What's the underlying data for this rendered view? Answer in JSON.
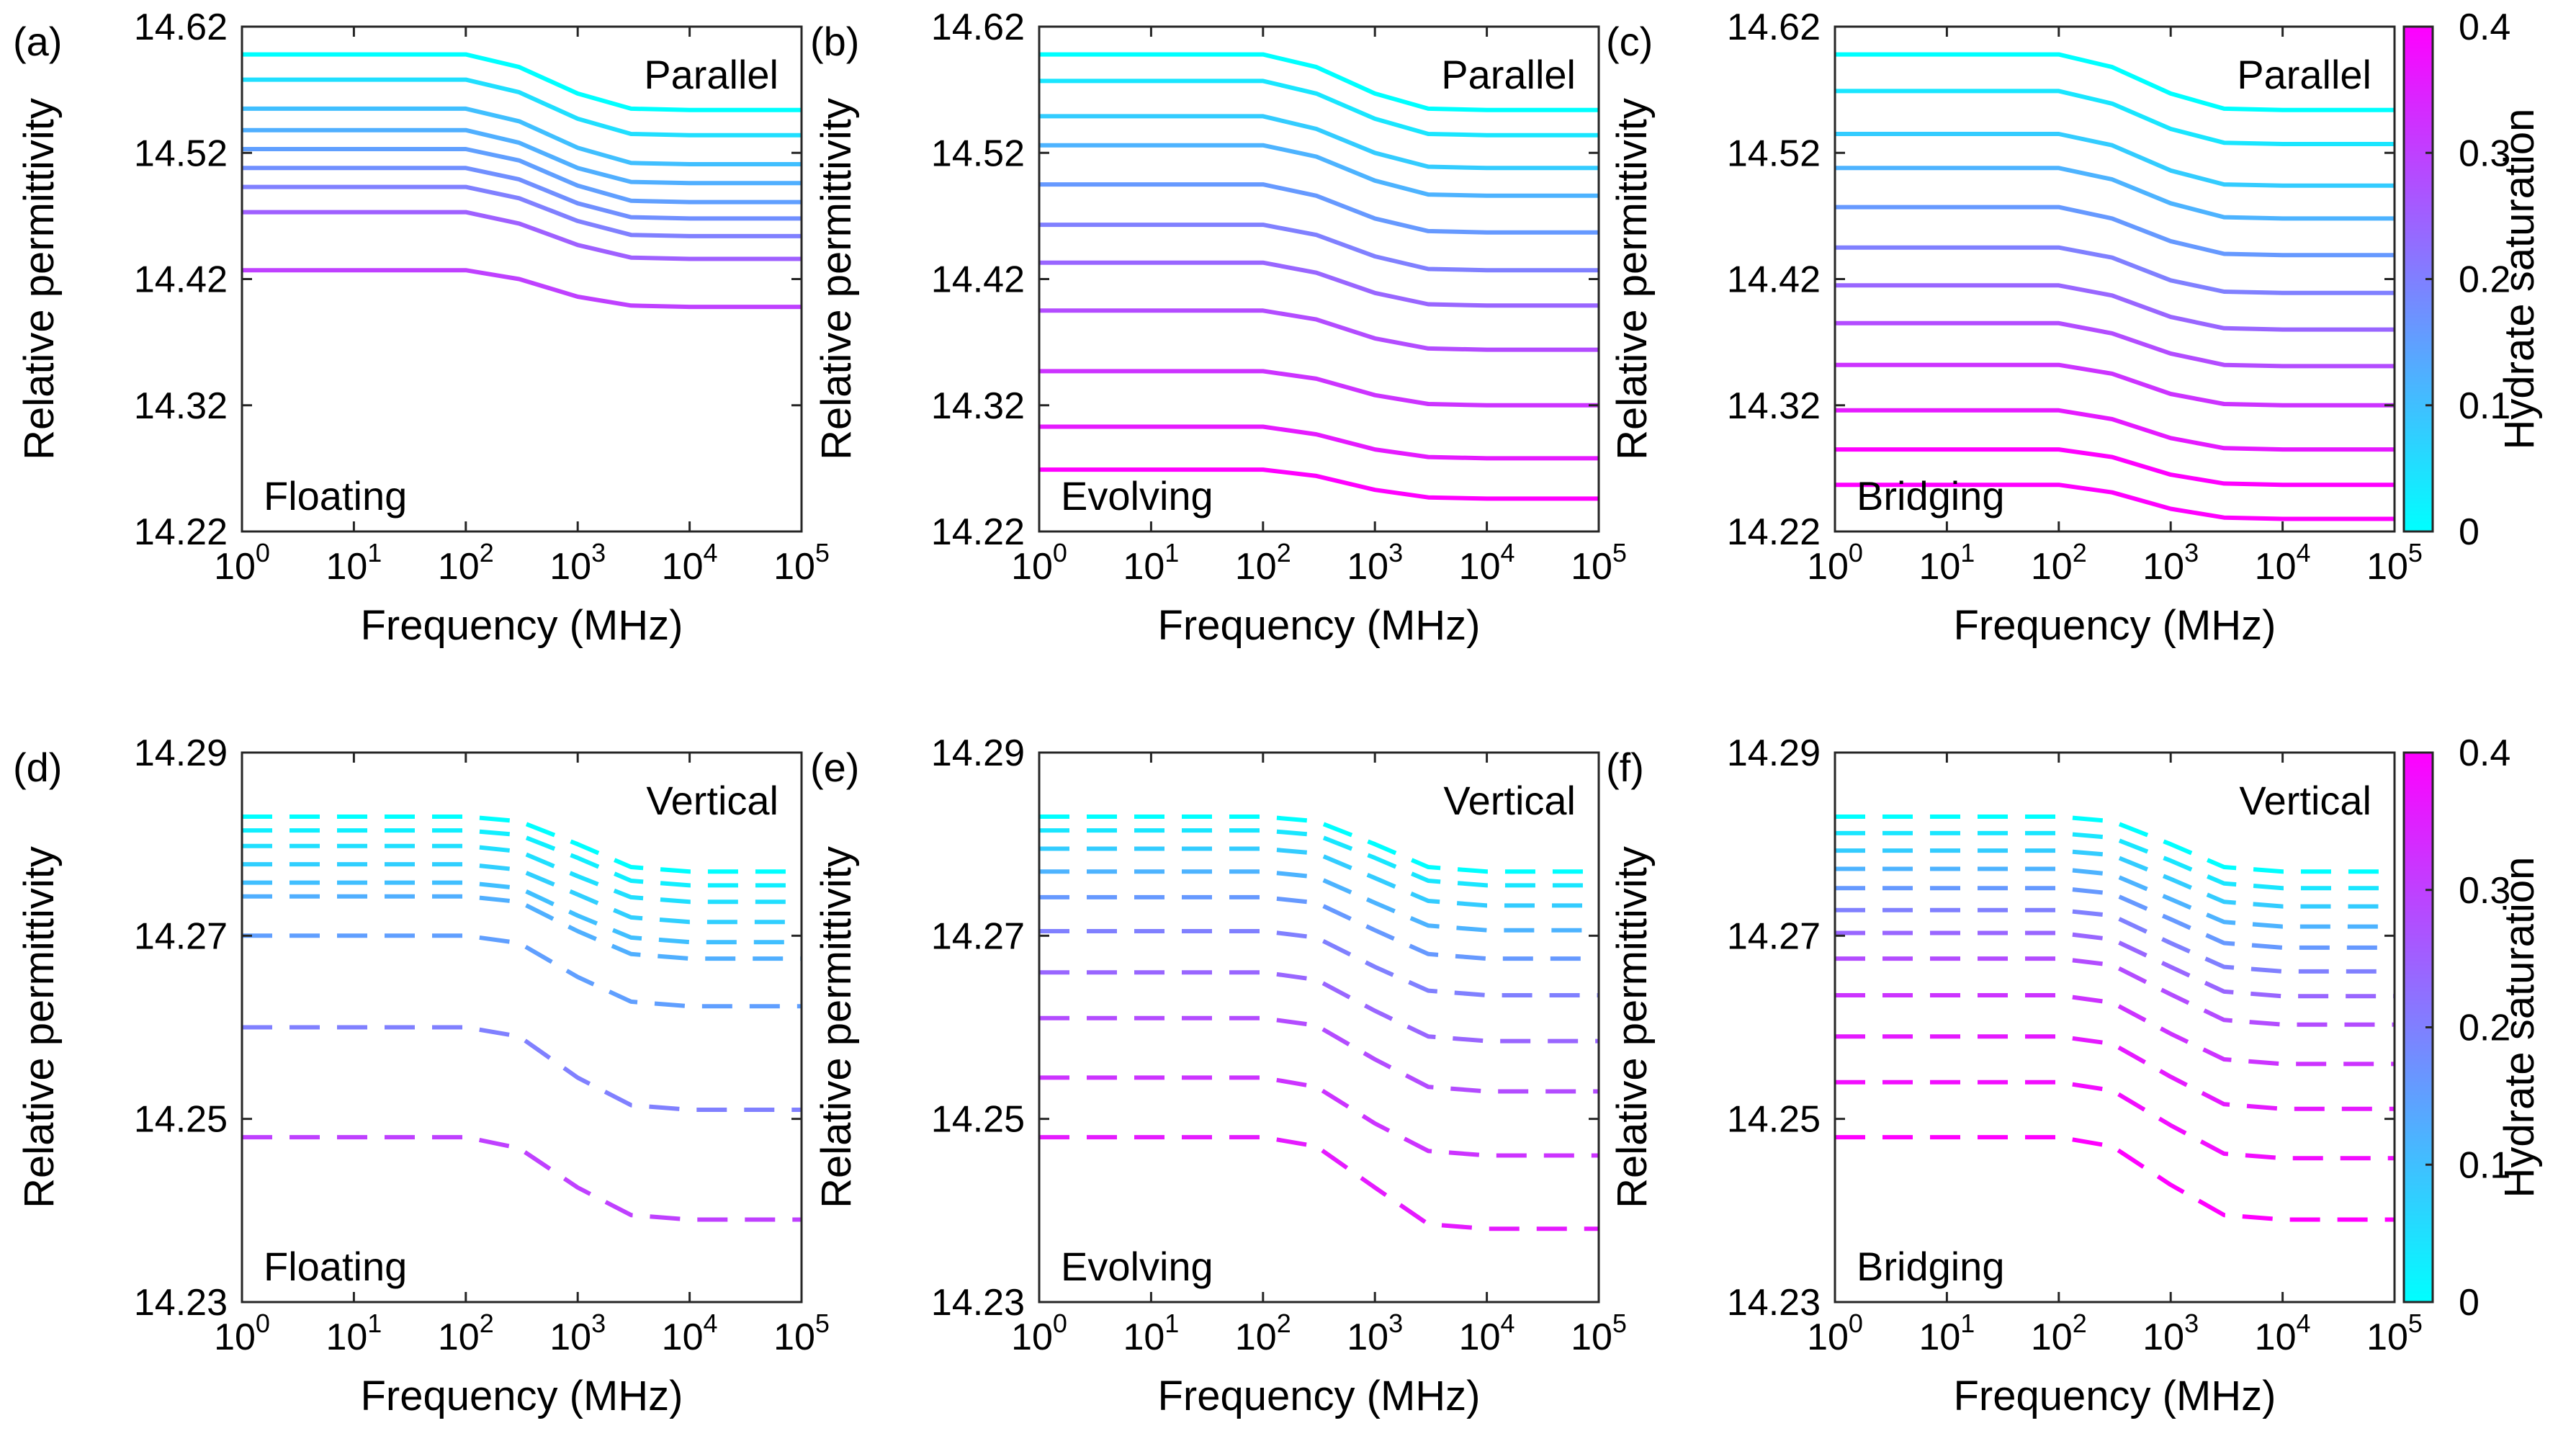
{
  "figure": {
    "colorbar_label": "Hydrate saturation",
    "colorbar_ticks": [
      "0",
      "0.1",
      "0.2",
      "0.3",
      "0.4"
    ],
    "colorbar_colors": [
      "#00ffff",
      "#ff00ff"
    ]
  },
  "chart_data": [
    {
      "type": "line",
      "panel_label": "(a)",
      "orientation": "Parallel",
      "model": "Floating",
      "xlabel": "Frequency (MHz)",
      "ylabel": "Relative permittivity",
      "x_scale": "log",
      "xlim": [
        1,
        100000
      ],
      "ylim": [
        14.22,
        14.62
      ],
      "ytick_labels": [
        "14.22",
        "14.32",
        "14.42",
        "14.52",
        "14.62"
      ],
      "xtick_base": "10",
      "xtick_exponents": [
        "0",
        "1",
        "2",
        "3",
        "4",
        "5"
      ],
      "line_style": "solid",
      "x": [
        1,
        100,
        300,
        1000,
        3000,
        10000,
        100000
      ],
      "series": [
        {
          "saturation": 0.0,
          "values": [
            14.598,
            14.598,
            14.588,
            14.567,
            14.555,
            14.554,
            14.554
          ]
        },
        {
          "saturation": 0.05,
          "values": [
            14.578,
            14.578,
            14.568,
            14.547,
            14.535,
            14.534,
            14.534
          ]
        },
        {
          "saturation": 0.1,
          "values": [
            14.555,
            14.555,
            14.545,
            14.524,
            14.512,
            14.511,
            14.511
          ]
        },
        {
          "saturation": 0.125,
          "values": [
            14.538,
            14.538,
            14.528,
            14.508,
            14.497,
            14.496,
            14.496
          ]
        },
        {
          "saturation": 0.15,
          "values": [
            14.523,
            14.523,
            14.514,
            14.494,
            14.482,
            14.481,
            14.481
          ]
        },
        {
          "saturation": 0.175,
          "values": [
            14.508,
            14.508,
            14.499,
            14.48,
            14.469,
            14.468,
            14.468
          ]
        },
        {
          "saturation": 0.2,
          "values": [
            14.493,
            14.493,
            14.484,
            14.466,
            14.455,
            14.454,
            14.454
          ]
        },
        {
          "saturation": 0.25,
          "values": [
            14.473,
            14.473,
            14.464,
            14.447,
            14.437,
            14.436,
            14.436
          ]
        },
        {
          "saturation": 0.3,
          "values": [
            14.427,
            14.427,
            14.42,
            14.406,
            14.399,
            14.398,
            14.398
          ]
        }
      ]
    },
    {
      "type": "line",
      "panel_label": "(b)",
      "orientation": "Parallel",
      "model": "Evolving",
      "xlabel": "Frequency (MHz)",
      "ylabel": "Relative permittivity",
      "x_scale": "log",
      "xlim": [
        1,
        100000
      ],
      "ylim": [
        14.22,
        14.62
      ],
      "ytick_labels": [
        "14.22",
        "14.32",
        "14.42",
        "14.52",
        "14.62"
      ],
      "xtick_base": "10",
      "xtick_exponents": [
        "0",
        "1",
        "2",
        "3",
        "4",
        "5"
      ],
      "line_style": "solid",
      "x": [
        1,
        100,
        300,
        1000,
        3000,
        10000,
        100000
      ],
      "series": [
        {
          "saturation": 0.0,
          "values": [
            14.598,
            14.598,
            14.588,
            14.567,
            14.555,
            14.554,
            14.554
          ]
        },
        {
          "saturation": 0.04,
          "values": [
            14.577,
            14.577,
            14.567,
            14.547,
            14.535,
            14.534,
            14.534
          ]
        },
        {
          "saturation": 0.08,
          "values": [
            14.549,
            14.549,
            14.539,
            14.52,
            14.509,
            14.508,
            14.508
          ]
        },
        {
          "saturation": 0.12,
          "values": [
            14.526,
            14.526,
            14.517,
            14.498,
            14.487,
            14.486,
            14.486
          ]
        },
        {
          "saturation": 0.16,
          "values": [
            14.495,
            14.495,
            14.486,
            14.468,
            14.458,
            14.457,
            14.457
          ]
        },
        {
          "saturation": 0.2,
          "values": [
            14.463,
            14.463,
            14.455,
            14.438,
            14.428,
            14.427,
            14.427
          ]
        },
        {
          "saturation": 0.24,
          "values": [
            14.433,
            14.433,
            14.425,
            14.409,
            14.4,
            14.399,
            14.399
          ]
        },
        {
          "saturation": 0.28,
          "values": [
            14.395,
            14.395,
            14.388,
            14.373,
            14.365,
            14.364,
            14.364
          ]
        },
        {
          "saturation": 0.32,
          "values": [
            14.347,
            14.347,
            14.341,
            14.328,
            14.321,
            14.32,
            14.32
          ]
        },
        {
          "saturation": 0.36,
          "values": [
            14.303,
            14.303,
            14.297,
            14.285,
            14.279,
            14.278,
            14.278
          ]
        },
        {
          "saturation": 0.4,
          "values": [
            14.269,
            14.269,
            14.264,
            14.253,
            14.247,
            14.246,
            14.246
          ]
        }
      ]
    },
    {
      "type": "line",
      "panel_label": "(c)",
      "orientation": "Parallel",
      "model": "Bridging",
      "xlabel": "Frequency (MHz)",
      "ylabel": "Relative permittivity",
      "x_scale": "log",
      "xlim": [
        1,
        100000
      ],
      "ylim": [
        14.22,
        14.62
      ],
      "ytick_labels": [
        "14.22",
        "14.32",
        "14.42",
        "14.52",
        "14.62"
      ],
      "xtick_base": "10",
      "xtick_exponents": [
        "0",
        "1",
        "2",
        "3",
        "4",
        "5"
      ],
      "line_style": "solid",
      "x": [
        1,
        100,
        300,
        1000,
        3000,
        10000,
        100000
      ],
      "series": [
        {
          "saturation": 0.0,
          "values": [
            14.598,
            14.598,
            14.588,
            14.567,
            14.555,
            14.554,
            14.554
          ]
        },
        {
          "saturation": 0.04,
          "values": [
            14.569,
            14.569,
            14.559,
            14.539,
            14.528,
            14.527,
            14.527
          ]
        },
        {
          "saturation": 0.08,
          "values": [
            14.535,
            14.535,
            14.526,
            14.506,
            14.495,
            14.494,
            14.494
          ]
        },
        {
          "saturation": 0.12,
          "values": [
            14.508,
            14.508,
            14.499,
            14.48,
            14.469,
            14.468,
            14.468
          ]
        },
        {
          "saturation": 0.16,
          "values": [
            14.477,
            14.477,
            14.468,
            14.45,
            14.44,
            14.439,
            14.439
          ]
        },
        {
          "saturation": 0.2,
          "values": [
            14.445,
            14.445,
            14.437,
            14.419,
            14.41,
            14.409,
            14.409
          ]
        },
        {
          "saturation": 0.24,
          "values": [
            14.415,
            14.415,
            14.407,
            14.39,
            14.381,
            14.38,
            14.38
          ]
        },
        {
          "saturation": 0.28,
          "values": [
            14.385,
            14.385,
            14.377,
            14.361,
            14.352,
            14.351,
            14.351
          ]
        },
        {
          "saturation": 0.32,
          "values": [
            14.352,
            14.352,
            14.345,
            14.329,
            14.321,
            14.32,
            14.32
          ]
        },
        {
          "saturation": 0.36,
          "values": [
            14.316,
            14.316,
            14.309,
            14.294,
            14.286,
            14.285,
            14.285
          ]
        },
        {
          "saturation": 0.4,
          "values": [
            14.285,
            14.285,
            14.279,
            14.265,
            14.258,
            14.257,
            14.257
          ]
        },
        {
          "saturation": 0.42,
          "values": [
            14.257,
            14.257,
            14.251,
            14.238,
            14.231,
            14.23,
            14.23
          ]
        }
      ]
    },
    {
      "type": "line",
      "panel_label": "(d)",
      "orientation": "Vertical",
      "model": "Floating",
      "xlabel": "Frequency (MHz)",
      "ylabel": "Relative permittivity",
      "x_scale": "log",
      "xlim": [
        1,
        100000
      ],
      "ylim": [
        14.23,
        14.29
      ],
      "ytick_labels": [
        "14.23",
        "14.25",
        "14.27",
        "14.29"
      ],
      "xtick_base": "10",
      "xtick_exponents": [
        "0",
        "1",
        "2",
        "3",
        "4",
        "5"
      ],
      "line_style": "dashed",
      "x": [
        1,
        100,
        300,
        1000,
        3000,
        10000,
        100000
      ],
      "series": [
        {
          "saturation": 0.0,
          "values": [
            14.283,
            14.283,
            14.2825,
            14.28,
            14.2775,
            14.277,
            14.277
          ]
        },
        {
          "saturation": 0.025,
          "values": [
            14.2815,
            14.2815,
            14.281,
            14.2785,
            14.276,
            14.2755,
            14.2755
          ]
        },
        {
          "saturation": 0.05,
          "values": [
            14.2798,
            14.2798,
            14.2792,
            14.2765,
            14.2742,
            14.2737,
            14.2737
          ]
        },
        {
          "saturation": 0.075,
          "values": [
            14.2778,
            14.2778,
            14.2772,
            14.2745,
            14.272,
            14.2715,
            14.2715
          ]
        },
        {
          "saturation": 0.1,
          "values": [
            14.2758,
            14.2758,
            14.2752,
            14.2722,
            14.2698,
            14.2693,
            14.2693
          ]
        },
        {
          "saturation": 0.125,
          "values": [
            14.2743,
            14.2743,
            14.2737,
            14.2705,
            14.268,
            14.2675,
            14.2675
          ]
        },
        {
          "saturation": 0.15,
          "values": [
            14.27,
            14.27,
            14.2692,
            14.2655,
            14.2628,
            14.2623,
            14.2623
          ]
        },
        {
          "saturation": 0.2,
          "values": [
            14.26,
            14.26,
            14.259,
            14.2545,
            14.2515,
            14.251,
            14.251
          ]
        },
        {
          "saturation": 0.3,
          "values": [
            14.248,
            14.248,
            14.2468,
            14.2425,
            14.2395,
            14.239,
            14.239
          ]
        }
      ]
    },
    {
      "type": "line",
      "panel_label": "(e)",
      "orientation": "Vertical",
      "model": "Evolving",
      "xlabel": "Frequency (MHz)",
      "ylabel": "Relative permittivity",
      "x_scale": "log",
      "xlim": [
        1,
        100000
      ],
      "ylim": [
        14.23,
        14.29
      ],
      "ytick_labels": [
        "14.23",
        "14.25",
        "14.27",
        "14.29"
      ],
      "xtick_base": "10",
      "xtick_exponents": [
        "0",
        "1",
        "2",
        "3",
        "4",
        "5"
      ],
      "line_style": "dashed",
      "x": [
        1,
        100,
        300,
        1000,
        3000,
        10000,
        100000
      ],
      "series": [
        {
          "saturation": 0.0,
          "values": [
            14.283,
            14.283,
            14.2825,
            14.28,
            14.2775,
            14.277,
            14.277
          ]
        },
        {
          "saturation": 0.04,
          "values": [
            14.2815,
            14.2815,
            14.281,
            14.2785,
            14.276,
            14.2755,
            14.2755
          ]
        },
        {
          "saturation": 0.08,
          "values": [
            14.2795,
            14.2795,
            14.279,
            14.2763,
            14.2738,
            14.2733,
            14.2733
          ]
        },
        {
          "saturation": 0.12,
          "values": [
            14.277,
            14.277,
            14.2764,
            14.2736,
            14.2711,
            14.2706,
            14.2706
          ]
        },
        {
          "saturation": 0.16,
          "values": [
            14.2742,
            14.2742,
            14.2736,
            14.2706,
            14.268,
            14.2675,
            14.2675
          ]
        },
        {
          "saturation": 0.2,
          "values": [
            14.2705,
            14.2705,
            14.2698,
            14.2666,
            14.264,
            14.2635,
            14.2635
          ]
        },
        {
          "saturation": 0.24,
          "values": [
            14.266,
            14.266,
            14.2652,
            14.2618,
            14.259,
            14.2585,
            14.2585
          ]
        },
        {
          "saturation": 0.28,
          "values": [
            14.261,
            14.261,
            14.2602,
            14.2565,
            14.2535,
            14.253,
            14.253
          ]
        },
        {
          "saturation": 0.32,
          "values": [
            14.2545,
            14.2545,
            14.2535,
            14.2495,
            14.2465,
            14.246,
            14.246
          ]
        },
        {
          "saturation": 0.36,
          "values": [
            14.248,
            14.248,
            14.247,
            14.2425,
            14.2385,
            14.238,
            14.238
          ]
        }
      ]
    },
    {
      "type": "line",
      "panel_label": "(f)",
      "orientation": "Vertical",
      "model": "Bridging",
      "xlabel": "Frequency (MHz)",
      "ylabel": "Relative permittivity",
      "x_scale": "log",
      "xlim": [
        1,
        100000
      ],
      "ylim": [
        14.23,
        14.29
      ],
      "ytick_labels": [
        "14.23",
        "14.25",
        "14.27",
        "14.29"
      ],
      "xtick_base": "10",
      "xtick_exponents": [
        "0",
        "1",
        "2",
        "3",
        "4",
        "5"
      ],
      "line_style": "dashed",
      "x": [
        1,
        100,
        300,
        1000,
        3000,
        10000,
        100000
      ],
      "series": [
        {
          "saturation": 0.0,
          "values": [
            14.283,
            14.283,
            14.2825,
            14.28,
            14.2775,
            14.277,
            14.277
          ]
        },
        {
          "saturation": 0.04,
          "values": [
            14.2812,
            14.2812,
            14.2807,
            14.2782,
            14.2757,
            14.2752,
            14.2752
          ]
        },
        {
          "saturation": 0.08,
          "values": [
            14.2793,
            14.2793,
            14.2788,
            14.2762,
            14.2737,
            14.2732,
            14.2732
          ]
        },
        {
          "saturation": 0.12,
          "values": [
            14.2773,
            14.2773,
            14.2767,
            14.274,
            14.2715,
            14.271,
            14.271
          ]
        },
        {
          "saturation": 0.16,
          "values": [
            14.2752,
            14.2752,
            14.2746,
            14.2718,
            14.2692,
            14.2687,
            14.2687
          ]
        },
        {
          "saturation": 0.2,
          "values": [
            14.2728,
            14.2728,
            14.2722,
            14.2692,
            14.2666,
            14.2661,
            14.2661
          ]
        },
        {
          "saturation": 0.24,
          "values": [
            14.2703,
            14.2703,
            14.2696,
            14.2666,
            14.2639,
            14.2634,
            14.2634
          ]
        },
        {
          "saturation": 0.28,
          "values": [
            14.2675,
            14.2675,
            14.2668,
            14.2636,
            14.2608,
            14.2603,
            14.2603
          ]
        },
        {
          "saturation": 0.32,
          "values": [
            14.2635,
            14.2635,
            14.2627,
            14.2593,
            14.2565,
            14.256,
            14.256
          ]
        },
        {
          "saturation": 0.36,
          "values": [
            14.259,
            14.259,
            14.2582,
            14.2546,
            14.2516,
            14.2511,
            14.2511
          ]
        },
        {
          "saturation": 0.38,
          "values": [
            14.254,
            14.254,
            14.2531,
            14.2493,
            14.2462,
            14.2457,
            14.2457
          ]
        },
        {
          "saturation": 0.4,
          "values": [
            14.248,
            14.248,
            14.247,
            14.2428,
            14.2395,
            14.239,
            14.239
          ]
        }
      ]
    }
  ]
}
